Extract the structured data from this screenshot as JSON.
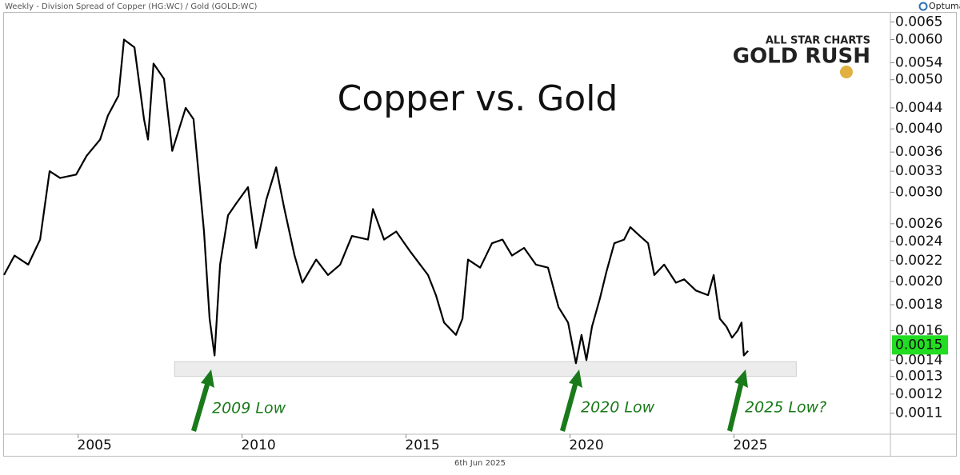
{
  "header": "Weekly - Division Spread of Copper (HG:WC) / Gold (GOLD:WC)",
  "brand": "Optuma",
  "logo": {
    "top": "ALL STAR CHARTS",
    "bottom": "GOLD RUSH"
  },
  "date": "6th Jun 2025",
  "chart_data": {
    "type": "line",
    "title": "Copper vs. Gold",
    "x": [
      2002.74,
      2003.06,
      2003.48,
      2003.84,
      2004.13,
      2004.45,
      2004.94,
      2005.26,
      2005.67,
      2005.91,
      2006.23,
      2006.4,
      2006.72,
      2007.01,
      2007.13,
      2007.3,
      2007.62,
      2007.87,
      2008.28,
      2008.52,
      2008.84,
      2009.01,
      2009.16,
      2009.33,
      2009.57,
      2009.82,
      2010.18,
      2010.43,
      2010.74,
      2011.04,
      2011.28,
      2011.6,
      2011.84,
      2012.26,
      2012.62,
      2012.99,
      2013.35,
      2013.84,
      2013.99,
      2014.33,
      2014.7,
      2015.11,
      2015.43,
      2015.67,
      2015.91,
      2016.16,
      2016.52,
      2016.72,
      2016.89,
      2017.26,
      2017.62,
      2017.94,
      2018.23,
      2018.6,
      2018.96,
      2019.33,
      2019.65,
      2019.94,
      2020.18,
      2020.35,
      2020.5,
      2020.67,
      2020.91,
      2021.11,
      2021.35,
      2021.65,
      2021.84,
      2022.13,
      2022.38,
      2022.57,
      2022.87,
      2023.23,
      2023.48,
      2023.84,
      2024.21,
      2024.38,
      2024.57,
      2024.77,
      2024.94,
      2025.11,
      2025.23,
      2025.3,
      2025.43
    ],
    "values": [
      0.00206,
      0.00225,
      0.00216,
      0.00242,
      0.0033,
      0.0032,
      0.00325,
      0.00354,
      0.00381,
      0.00425,
      0.00465,
      0.006,
      0.00579,
      0.00418,
      0.00381,
      0.00538,
      0.00502,
      0.00362,
      0.0044,
      0.00418,
      0.00251,
      0.00169,
      0.00143,
      0.00216,
      0.0027,
      0.00285,
      0.00307,
      0.00233,
      0.0029,
      0.00336,
      0.0028,
      0.00225,
      0.00199,
      0.00221,
      0.00206,
      0.00216,
      0.00246,
      0.00242,
      0.00278,
      0.00242,
      0.00251,
      0.0023,
      0.00216,
      0.00206,
      0.00188,
      0.00166,
      0.00157,
      0.00169,
      0.00221,
      0.00213,
      0.00238,
      0.00242,
      0.00225,
      0.00233,
      0.00216,
      0.00213,
      0.00178,
      0.00166,
      0.00138,
      0.00157,
      0.0014,
      0.00163,
      0.00185,
      0.00209,
      0.00238,
      0.00242,
      0.00256,
      0.00246,
      0.00238,
      0.00206,
      0.00216,
      0.00199,
      0.00202,
      0.00192,
      0.00188,
      0.00206,
      0.00169,
      0.00163,
      0.00155,
      0.0016,
      0.00166,
      0.00143,
      0.00146
    ],
    "color": "#000000",
    "current_value": 0.0015,
    "current_color": "#22dd22",
    "xlim": [
      2002.74,
      2029.77
    ],
    "xticks": [
      2005,
      2010,
      2015,
      2020,
      2025
    ],
    "log_y": true,
    "ylim": [
      0.001,
      0.0068
    ],
    "yticks": [
      0.0065,
      {
        "value": 0.006,
        "label": "0.0060"
      },
      0.0054,
      {
        "value": 0.005,
        "label": "0.0050"
      },
      0.0044,
      {
        "value": 0.004,
        "label": "0.0040"
      },
      0.0036,
      0.0033,
      {
        "value": 0.003,
        "label": "0.0030"
      },
      0.0026,
      0.0024,
      0.0022,
      {
        "value": 0.002,
        "label": "0.0020"
      },
      0.0018,
      0.0016,
      0.0014,
      0.0013,
      0.0012,
      0.0011
    ],
    "support_zone": {
      "x": [
        2007.94,
        2026.9
      ],
      "y": [
        0.0013,
        0.00139
      ]
    },
    "annotations": [
      "2009 Low",
      "2020 Low",
      "2025 Low?"
    ]
  }
}
